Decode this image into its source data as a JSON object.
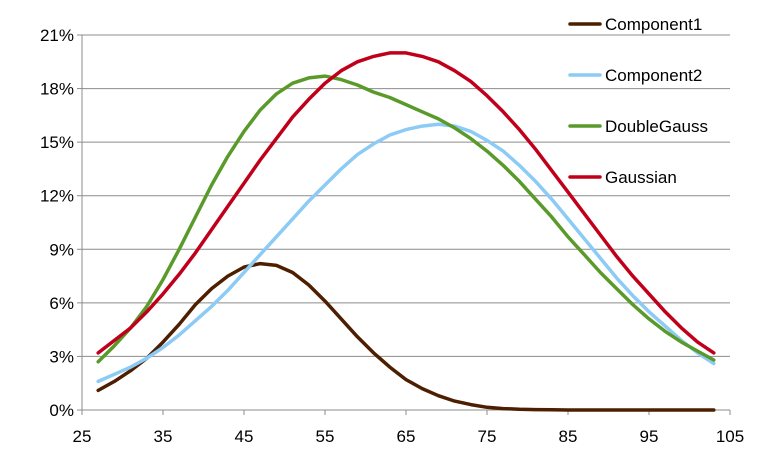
{
  "chart_data": {
    "type": "line",
    "title": "",
    "xlabel": "",
    "ylabel": "",
    "xlim": [
      25,
      105
    ],
    "ylim": [
      0,
      21
    ],
    "x_ticks": [
      25,
      35,
      45,
      55,
      65,
      75,
      85,
      95,
      105
    ],
    "y_ticks": [
      0,
      3,
      6,
      9,
      12,
      15,
      18,
      21
    ],
    "y_tick_labels": [
      "0%",
      "3%",
      "6%",
      "9%",
      "12%",
      "15%",
      "18%",
      "21%"
    ],
    "grid": "horizontal",
    "legend_position": "right",
    "x": [
      27,
      29,
      31,
      33,
      35,
      37,
      39,
      41,
      43,
      45,
      47,
      49,
      51,
      53,
      55,
      57,
      59,
      61,
      63,
      65,
      67,
      69,
      71,
      73,
      75,
      77,
      79,
      81,
      83,
      85,
      87,
      89,
      91,
      93,
      95,
      97,
      99,
      101,
      103
    ],
    "series": [
      {
        "name": "Component1",
        "color": "#4d1f00",
        "values": [
          1.1,
          1.6,
          2.2,
          2.9,
          3.8,
          4.8,
          5.9,
          6.8,
          7.5,
          8.0,
          8.2,
          8.1,
          7.7,
          7.0,
          6.1,
          5.1,
          4.1,
          3.2,
          2.4,
          1.7,
          1.2,
          0.8,
          0.5,
          0.3,
          0.15,
          0.08,
          0.04,
          0.02,
          0.01,
          0.0,
          0.0,
          0.0,
          0.0,
          0.0,
          0.0,
          0.0,
          0.0,
          0.0,
          0.0
        ]
      },
      {
        "name": "Component2",
        "color": "#8ccbf5",
        "values": [
          1.6,
          2.0,
          2.4,
          2.9,
          3.5,
          4.2,
          5.0,
          5.8,
          6.7,
          7.7,
          8.7,
          9.7,
          10.7,
          11.7,
          12.6,
          13.5,
          14.3,
          14.9,
          15.4,
          15.7,
          15.9,
          16.0,
          15.9,
          15.6,
          15.1,
          14.5,
          13.7,
          12.8,
          11.8,
          10.7,
          9.6,
          8.5,
          7.4,
          6.4,
          5.5,
          4.7,
          3.9,
          3.2,
          2.6
        ]
      },
      {
        "name": "DoubleGauss",
        "color": "#5a9a2a",
        "values": [
          2.7,
          3.6,
          4.6,
          5.8,
          7.3,
          9.0,
          10.8,
          12.6,
          14.2,
          15.6,
          16.8,
          17.7,
          18.3,
          18.6,
          18.7,
          18.5,
          18.2,
          17.8,
          17.5,
          17.1,
          16.7,
          16.3,
          15.8,
          15.2,
          14.5,
          13.7,
          12.8,
          11.8,
          10.8,
          9.7,
          8.7,
          7.7,
          6.8,
          5.9,
          5.1,
          4.4,
          3.8,
          3.3,
          2.8
        ]
      },
      {
        "name": "Gaussian",
        "color": "#c0001a",
        "values": [
          3.2,
          3.9,
          4.6,
          5.5,
          6.5,
          7.6,
          8.8,
          10.1,
          11.4,
          12.7,
          14.0,
          15.2,
          16.4,
          17.4,
          18.3,
          19.0,
          19.5,
          19.8,
          20.0,
          20.0,
          19.8,
          19.5,
          19.0,
          18.4,
          17.6,
          16.7,
          15.7,
          14.6,
          13.4,
          12.2,
          11.0,
          9.8,
          8.6,
          7.5,
          6.5,
          5.5,
          4.6,
          3.8,
          3.2
        ]
      }
    ]
  }
}
